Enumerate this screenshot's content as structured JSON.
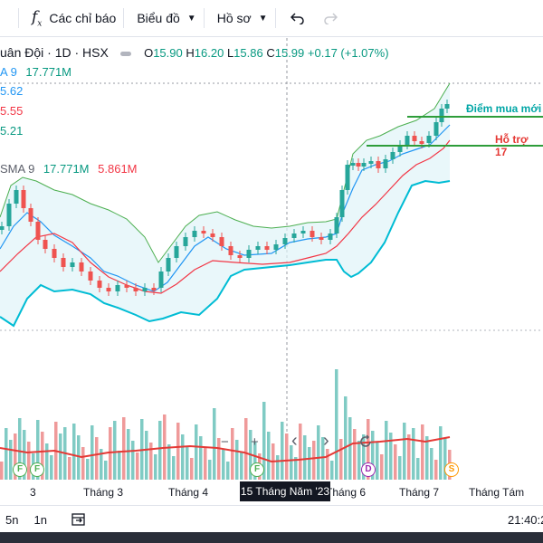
{
  "toolbar": {
    "indicators_label": "Các chỉ báo",
    "chart_label": "Biểu đồ",
    "profile_label": "Hồ sơ"
  },
  "legend": {
    "symbol": "uân Đội · 1D · HSX",
    "open_key": "O",
    "open": "15.90",
    "high_key": "H",
    "high": "16.20",
    "low_key": "L",
    "low": "15.86",
    "close_key": "C",
    "close": "15.99",
    "change": "+0.17 (+1.07%)",
    "row2_label": "A 9",
    "row2_value": "17.771M",
    "band_upper": "5.62",
    "band_mid": "5.55",
    "band_lower": "5.21",
    "vol_label": "SMA 9",
    "vol_value1": "17.771M",
    "vol_value2": "5.861M"
  },
  "annotations": {
    "buy_point": "Điểm mua mới",
    "support": "Hỗ trợ 17"
  },
  "markers": {
    "f": "F",
    "d": "D",
    "s": "S"
  },
  "volume_controls": {
    "minus": "−",
    "plus": "+",
    "left": "‹",
    "right": "›"
  },
  "time_axis": {
    "labels": [
      "3",
      "Tháng 3",
      "Tháng 4",
      "Tháng 6",
      "Tháng 7",
      "Tháng Tám"
    ],
    "crosshair": "15 Tháng Năm '23"
  },
  "bottombar": {
    "range_5n": "5n",
    "range_1n": "1n",
    "time": "21:40:2"
  },
  "colors": {
    "up": "#26a69a",
    "down": "#ef5350",
    "bb_upper": "#4caf50",
    "bb_lower": "#00bcd4",
    "ma_fast": "#2196f3",
    "ma_slow": "#f23645",
    "support_line": "#2e9d3a",
    "buy_text": "#00a6a6",
    "support_text": "#e53935"
  }
}
